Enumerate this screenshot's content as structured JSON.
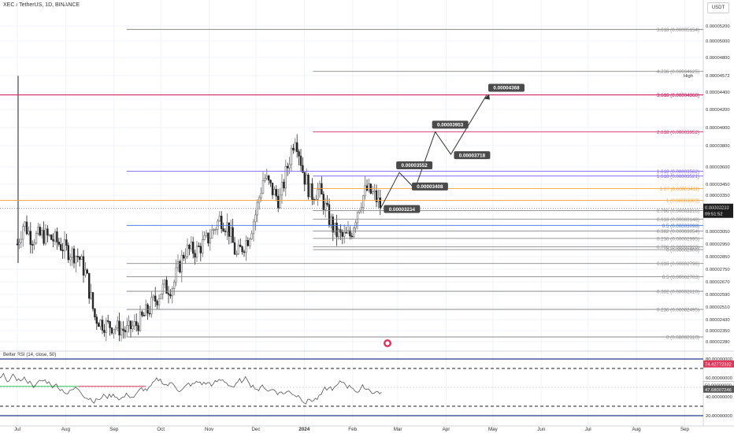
{
  "header": {
    "symbol_line": "XEC / TetherUS, 1D, BINANCE",
    "currency": "USDT"
  },
  "rsi_label": "Better RSI (14, close, 50)",
  "colors": {
    "bull": "#6b6b6b",
    "bear": "#262626",
    "grid": "#f0f3fa",
    "fib_gray": "#8a8a8a",
    "fib_orange": "#f7a23b",
    "fib_purple": "#7b61ff",
    "fib_blue": "#3d6fd6",
    "fib_red": "#d6336c",
    "rsi_line": "#555555",
    "rsi_green": "#2fc95a",
    "rsi_red": "#e0365a",
    "rsi_navy": "#1f3a8a"
  },
  "chart_data": {
    "type": "candlestick",
    "y_axis": {
      "ticks": [
        "0.00005200",
        "0.00005000",
        "0.00004800",
        "0.00004572",
        "0.00004400",
        "0.00004200",
        "0.00004000",
        "0.00003800",
        "0.00003600",
        "0.00003450",
        "0.00003350",
        "0.00003250",
        "0.00003050",
        "0.00002950",
        "0.00002850",
        "0.00002750",
        "0.00002670",
        "0.00002590",
        "0.00002510",
        "0.00002430",
        "0.00002350",
        "0.00002280"
      ]
    },
    "x_axis": {
      "ticks": [
        "Jul",
        "Aug",
        "Sep",
        "Oct",
        "Nov",
        "Dec",
        "2024",
        "Feb",
        "Mar",
        "Apr",
        "May",
        "Jun",
        "Jul",
        "Aug",
        "Sep"
      ]
    },
    "fib_levels": [
      {
        "label": "3.618 (0.00005154)",
        "value": 5.154e-05,
        "color": "gray",
        "x0": 0.18,
        "hi": false
      },
      {
        "label": "4.236 (0.00004625)",
        "value": 4.625e-05,
        "color": "gray",
        "x0": 0.445,
        "hi": false
      },
      {
        "label": "3.618 (0.00004368)",
        "value": 4.368e-05,
        "color": "red",
        "x0": 0.0,
        "hi": true
      },
      {
        "label": "3.618 (0.00004368)",
        "value": 4.368e-05,
        "color": "red",
        "x0": 0.445,
        "hi": false
      },
      {
        "label": "2.618 (0.00003952)",
        "value": 3.952e-05,
        "color": "red",
        "x0": 0.445,
        "hi": false
      },
      {
        "label": "1.618 (0.00003562)",
        "value": 3.562e-05,
        "color": "purple",
        "x0": 0.18,
        "hi": false
      },
      {
        "label": "1.618 (0.00003521)",
        "value": 3.521e-05,
        "color": "purple",
        "x0": 0.445,
        "hi": false
      },
      {
        "label": "1.27 (0.00003411)",
        "value": 3.411e-05,
        "color": "orange",
        "x0": 0.445,
        "hi": false
      },
      {
        "label": "1 (0.00003303)",
        "value": 3.303e-05,
        "color": "orange",
        "x0": 0.0,
        "hi": false
      },
      {
        "label": "0.786 (0.00003216)",
        "value": 3.216e-05,
        "color": "gray",
        "x0": 0.445,
        "hi": false
      },
      {
        "label": "0.618 (0.00003148)",
        "value": 3.148e-05,
        "color": "gray",
        "x0": 0.445,
        "hi": false
      },
      {
        "label": "0.5 (0.00003098)",
        "value": 3.098e-05,
        "color": "blue",
        "x0": 0.18,
        "hi": false
      },
      {
        "label": "0.382 (0.00003054)",
        "value": 3.054e-05,
        "color": "gray",
        "x0": 0.445,
        "hi": false
      },
      {
        "label": "0.236 (0.00002995)",
        "value": 2.995e-05,
        "color": "gray",
        "x0": 0.445,
        "hi": false
      },
      {
        "label": "0.786 (0.00002928)",
        "value": 2.928e-05,
        "color": "gray",
        "x0": 0.445,
        "hi": false
      },
      {
        "label": "0 (0.00002906)",
        "value": 2.906e-05,
        "color": "gray",
        "x0": 0.445,
        "hi": false
      },
      {
        "label": "0.618 (0.00002796)",
        "value": 2.796e-05,
        "color": "gray",
        "x0": 0.18,
        "hi": false
      },
      {
        "label": "0.5 (0.00002703)",
        "value": 2.703e-05,
        "color": "gray",
        "x0": 0.18,
        "hi": false
      },
      {
        "label": "0.382 (0.00002610)",
        "value": 2.61e-05,
        "color": "gray",
        "x0": 0.18,
        "hi": false
      },
      {
        "label": "0.236 (0.00002495)",
        "value": 2.495e-05,
        "color": "gray",
        "x0": 0.18,
        "hi": false
      },
      {
        "label": "0 (0.00002310)",
        "value": 2.31e-05,
        "color": "gray",
        "x0": 0.18,
        "hi": false
      }
    ],
    "projection": [
      {
        "date": "2024-02-19",
        "value": 3.234e-05,
        "label": "0.00003234"
      },
      {
        "date": "2024-03-02",
        "value": 3.552e-05,
        "label": "0.00003552"
      },
      {
        "date": "2024-03-12",
        "value": 3.408e-05,
        "label": "0.00003408"
      },
      {
        "date": "2024-03-25",
        "value": 3.953e-05,
        "label": "0.00003953"
      },
      {
        "date": "2024-04-04",
        "value": 3.718e-05,
        "label": "0.00003718"
      },
      {
        "date": "2024-04-27",
        "value": 4.368e-05,
        "label": "0.00004368"
      }
    ],
    "price_tag": {
      "value": 3.233e-05,
      "label": "0.00003233",
      "countdown": "09:51:52"
    },
    "high_tag": {
      "label": "High",
      "value": "0.00004572"
    },
    "rsi": {
      "ticks": [
        "80.00000000",
        "60.00000000",
        "40.00000000",
        "20.00000000"
      ],
      "tags": [
        {
          "label": "74.42772332",
          "bg": "#e0365a"
        },
        {
          "label": "50.00000000",
          "bg": "#ffffff"
        },
        {
          "label": "47.68007246",
          "bg": "#555555"
        }
      ],
      "overbought": 80,
      "oversold": 20,
      "mid": 50
    }
  }
}
